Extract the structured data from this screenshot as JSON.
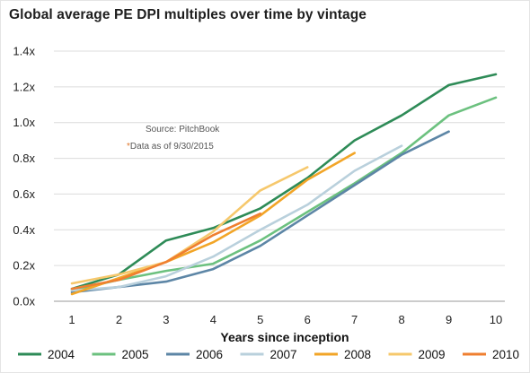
{
  "title": "Global average PE DPI multiples over time by vintage",
  "chart_data": {
    "type": "line",
    "title": "Global average PE DPI multiples over time by vintage",
    "xlabel": "Years since inception",
    "ylabel": "",
    "x_ticks": [
      "1",
      "2",
      "3",
      "4",
      "5",
      "6",
      "7",
      "8",
      "9",
      "10"
    ],
    "y_ticks": [
      "0.0x",
      "0.2x",
      "0.4x",
      "0.6x",
      "0.8x",
      "1.0x",
      "1.2x",
      "1.4x"
    ],
    "xlim": [
      1,
      10
    ],
    "ylim": [
      0,
      1.4
    ],
    "grid": "horizontal",
    "legend_position": "bottom",
    "annotations": {
      "source": "Source: PitchBook",
      "star": "*",
      "note": "Data as of 9/30/2015"
    },
    "series": [
      {
        "name": "2004",
        "color": "#2e8b57",
        "x": [
          1,
          2,
          3,
          4,
          5,
          6,
          7,
          8,
          9,
          10
        ],
        "values": [
          0.07,
          0.15,
          0.34,
          0.41,
          0.52,
          0.69,
          0.9,
          1.04,
          1.21,
          1.27
        ]
      },
      {
        "name": "2005",
        "color": "#6cc17f",
        "x": [
          1,
          2,
          3,
          4,
          5,
          6,
          7,
          8,
          9,
          10
        ],
        "values": [
          0.06,
          0.12,
          0.17,
          0.21,
          0.34,
          0.5,
          0.66,
          0.83,
          1.04,
          1.14
        ]
      },
      {
        "name": "2006",
        "color": "#5d86a6",
        "x": [
          1,
          2,
          3,
          4,
          5,
          6,
          7,
          8,
          9
        ],
        "values": [
          0.05,
          0.08,
          0.11,
          0.18,
          0.31,
          0.48,
          0.65,
          0.82,
          0.95
        ]
      },
      {
        "name": "2007",
        "color": "#b9d0dc",
        "x": [
          1,
          2,
          3,
          4,
          5,
          6,
          7,
          8
        ],
        "values": [
          0.06,
          0.08,
          0.14,
          0.25,
          0.4,
          0.54,
          0.73,
          0.87
        ]
      },
      {
        "name": "2008",
        "color": "#f2a527",
        "x": [
          1,
          2,
          3,
          4,
          5,
          6,
          7
        ],
        "values": [
          0.04,
          0.13,
          0.22,
          0.33,
          0.48,
          0.68,
          0.83
        ]
      },
      {
        "name": "2009",
        "color": "#f6c86c",
        "x": [
          1,
          2,
          3,
          4,
          5,
          6
        ],
        "values": [
          0.1,
          0.15,
          0.22,
          0.39,
          0.62,
          0.75
        ]
      },
      {
        "name": "2010",
        "color": "#ef7f30",
        "x": [
          1,
          2,
          3,
          4,
          5
        ],
        "values": [
          0.07,
          0.12,
          0.22,
          0.37,
          0.49
        ]
      }
    ]
  }
}
